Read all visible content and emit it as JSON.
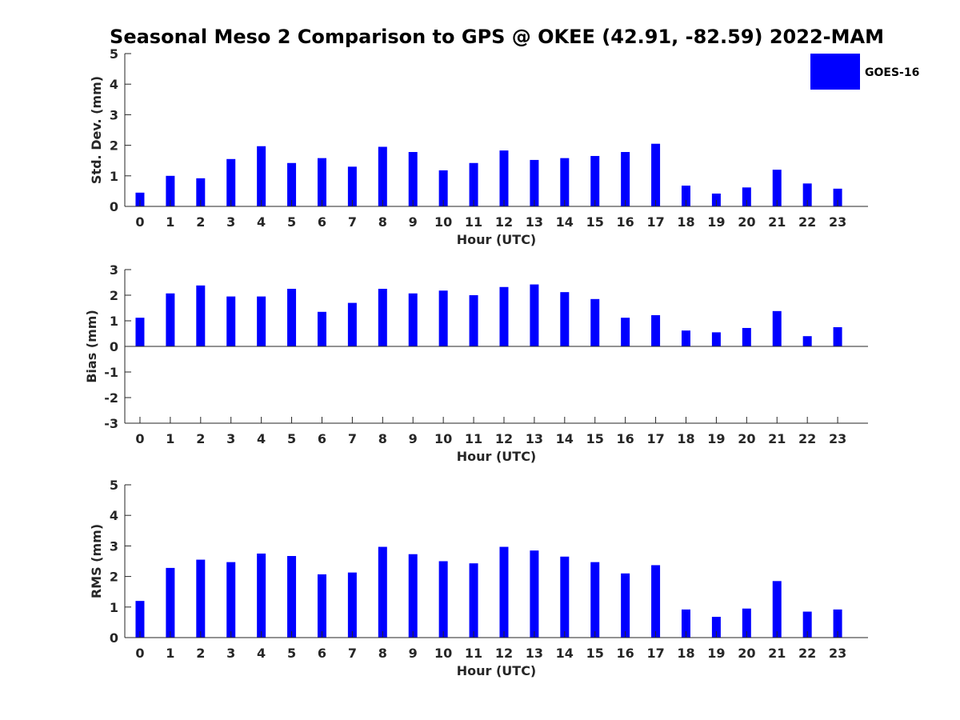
{
  "title": "Seasonal Meso 2 Comparison to GPS @ OKEE (42.91, -82.59) 2022-MAM",
  "legend": {
    "label": "GOES-16",
    "color": "#0000ff"
  },
  "chart_data": [
    {
      "type": "bar",
      "xlabel": "Hour (UTC)",
      "ylabel": "Std. Dev. (mm)",
      "ylim": [
        0,
        5
      ],
      "yticks": [
        0,
        1,
        2,
        3,
        4,
        5
      ],
      "categories": [
        "0",
        "1",
        "2",
        "3",
        "4",
        "5",
        "6",
        "7",
        "8",
        "9",
        "10",
        "11",
        "12",
        "13",
        "14",
        "15",
        "16",
        "17",
        "18",
        "19",
        "20",
        "21",
        "22",
        "23"
      ],
      "series": [
        {
          "name": "GOES-16",
          "color": "#0000ff",
          "values": [
            0.45,
            1.0,
            0.92,
            1.55,
            1.97,
            1.42,
            1.58,
            1.3,
            1.95,
            1.78,
            1.18,
            1.42,
            1.83,
            1.52,
            1.58,
            1.65,
            1.78,
            2.05,
            0.68,
            0.42,
            0.62,
            1.2,
            0.75,
            0.58
          ]
        }
      ]
    },
    {
      "type": "bar",
      "xlabel": "Hour (UTC)",
      "ylabel": "Bias (mm)",
      "ylim": [
        -3,
        3
      ],
      "yticks": [
        -3,
        -2,
        -1,
        0,
        1,
        2,
        3
      ],
      "categories": [
        "0",
        "1",
        "2",
        "3",
        "4",
        "5",
        "6",
        "7",
        "8",
        "9",
        "10",
        "11",
        "12",
        "13",
        "14",
        "15",
        "16",
        "17",
        "18",
        "19",
        "20",
        "21",
        "22",
        "23"
      ],
      "series": [
        {
          "name": "GOES-16",
          "color": "#0000ff",
          "values": [
            1.12,
            2.07,
            2.38,
            1.95,
            1.95,
            2.25,
            1.35,
            1.7,
            2.25,
            2.07,
            2.18,
            2.0,
            2.32,
            2.42,
            2.12,
            1.85,
            1.12,
            1.22,
            0.62,
            0.55,
            0.72,
            1.38,
            0.4,
            0.75
          ]
        }
      ]
    },
    {
      "type": "bar",
      "xlabel": "Hour (UTC)",
      "ylabel": "RMS (mm)",
      "ylim": [
        0,
        5
      ],
      "yticks": [
        0,
        1,
        2,
        3,
        4,
        5
      ],
      "categories": [
        "0",
        "1",
        "2",
        "3",
        "4",
        "5",
        "6",
        "7",
        "8",
        "9",
        "10",
        "11",
        "12",
        "13",
        "14",
        "15",
        "16",
        "17",
        "18",
        "19",
        "20",
        "21",
        "22",
        "23"
      ],
      "series": [
        {
          "name": "GOES-16",
          "color": "#0000ff",
          "values": [
            1.2,
            2.28,
            2.55,
            2.47,
            2.75,
            2.67,
            2.07,
            2.13,
            2.97,
            2.73,
            2.5,
            2.43,
            2.97,
            2.85,
            2.65,
            2.47,
            2.1,
            2.37,
            0.92,
            0.68,
            0.95,
            1.85,
            0.85,
            0.92
          ]
        }
      ]
    }
  ]
}
